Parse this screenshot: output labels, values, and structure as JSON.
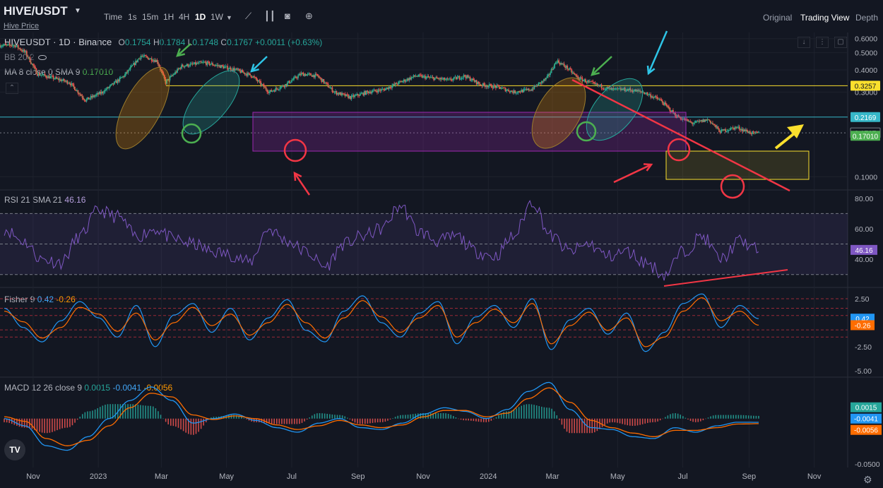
{
  "header": {
    "symbol": "HIVE/USDT",
    "sublink": "Hive Price",
    "timeframes": [
      "Time",
      "1s",
      "15m",
      "1H",
      "4H",
      "1D",
      "1W"
    ],
    "active_timeframe": "1D",
    "tools": [
      "chart-type-icon",
      "candles-icon",
      "camera-icon",
      "add-icon"
    ],
    "view_tabs": [
      "Original",
      "Trading View",
      "Depth"
    ],
    "active_view": "Trading View"
  },
  "legend": {
    "pair": "HIVEUSDT · 1D · Binance",
    "o_label": "O",
    "o": "0.1754",
    "h_label": "H",
    "h": "0.1784",
    "l_label": "L",
    "l": "0.1748",
    "c_label": "C",
    "c": "0.1767",
    "change": "+0.0011 (+0.63%)",
    "bb": "BB 20 2",
    "ma": "MA 8 close 0 SMA 9",
    "ma_value": "0.17010"
  },
  "colors": {
    "background": "#131722",
    "up": "#26a69a",
    "down": "#ef5350",
    "accent": "#2962ff"
  },
  "chart_data": [
    {
      "type": "candlestick",
      "title": "HIVEUSDT · 1D · Binance",
      "scale": "log",
      "x_ticks": [
        "Nov",
        "2023",
        "Mar",
        "May",
        "Jul",
        "Sep",
        "Nov",
        "2024",
        "Mar",
        "May",
        "Jul",
        "Sep",
        "Nov"
      ],
      "y_ticks": [
        "0.6000",
        "0.5000",
        "0.4000",
        "0.3000",
        "0.1000"
      ],
      "ylim": [
        0.085,
        0.65
      ],
      "price_labels": [
        {
          "value": "0.3257",
          "color": "#fbe02d"
        },
        {
          "value": "0.2169",
          "color": "#36b7c8"
        },
        {
          "value": "0.1767",
          "color": "#131722"
        },
        {
          "value": "0.17010",
          "color": "#4caf50"
        }
      ],
      "horizontal_lines": [
        0.3257,
        0.2169,
        0.1767
      ],
      "close_series": [
        {
          "x": "2022-10-15",
          "y": 0.55
        },
        {
          "x": "2022-10-25",
          "y": 0.5
        },
        {
          "x": "2022-11-05",
          "y": 0.38
        },
        {
          "x": "2022-11-20",
          "y": 0.36
        },
        {
          "x": "2022-12-05",
          "y": 0.34
        },
        {
          "x": "2022-12-20",
          "y": 0.27
        },
        {
          "x": "2023-01-05",
          "y": 0.3
        },
        {
          "x": "2023-01-25",
          "y": 0.37
        },
        {
          "x": "2023-02-10",
          "y": 0.48
        },
        {
          "x": "2023-02-25",
          "y": 0.45
        },
        {
          "x": "2023-03-05",
          "y": 0.34
        },
        {
          "x": "2023-03-20",
          "y": 0.42
        },
        {
          "x": "2023-04-10",
          "y": 0.44
        },
        {
          "x": "2023-04-25",
          "y": 0.42
        },
        {
          "x": "2023-05-10",
          "y": 0.4
        },
        {
          "x": "2023-05-25",
          "y": 0.37
        },
        {
          "x": "2023-06-10",
          "y": 0.3
        },
        {
          "x": "2023-06-25",
          "y": 0.33
        },
        {
          "x": "2023-07-10",
          "y": 0.38
        },
        {
          "x": "2023-07-25",
          "y": 0.37
        },
        {
          "x": "2023-08-10",
          "y": 0.3
        },
        {
          "x": "2023-08-25",
          "y": 0.28
        },
        {
          "x": "2023-09-10",
          "y": 0.3
        },
        {
          "x": "2023-09-25",
          "y": 0.31
        },
        {
          "x": "2023-10-10",
          "y": 0.34
        },
        {
          "x": "2023-10-25",
          "y": 0.37
        },
        {
          "x": "2023-11-10",
          "y": 0.36
        },
        {
          "x": "2023-11-25",
          "y": 0.35
        },
        {
          "x": "2023-12-10",
          "y": 0.37
        },
        {
          "x": "2023-12-25",
          "y": 0.33
        },
        {
          "x": "2024-01-10",
          "y": 0.32
        },
        {
          "x": "2024-01-25",
          "y": 0.3
        },
        {
          "x": "2024-02-10",
          "y": 0.31
        },
        {
          "x": "2024-02-25",
          "y": 0.36
        },
        {
          "x": "2024-03-05",
          "y": 0.45
        },
        {
          "x": "2024-03-15",
          "y": 0.41
        },
        {
          "x": "2024-03-25",
          "y": 0.36
        },
        {
          "x": "2024-04-10",
          "y": 0.33
        },
        {
          "x": "2024-04-25",
          "y": 0.31
        },
        {
          "x": "2024-05-10",
          "y": 0.31
        },
        {
          "x": "2024-05-25",
          "y": 0.3
        },
        {
          "x": "2024-06-10",
          "y": 0.27
        },
        {
          "x": "2024-06-25",
          "y": 0.22
        },
        {
          "x": "2024-07-10",
          "y": 0.2
        },
        {
          "x": "2024-07-25",
          "y": 0.21
        },
        {
          "x": "2024-08-05",
          "y": 0.18
        },
        {
          "x": "2024-08-20",
          "y": 0.19
        },
        {
          "x": "2024-09-05",
          "y": 0.175
        },
        {
          "x": "2024-09-10",
          "y": 0.1767
        }
      ]
    },
    {
      "type": "line",
      "title": "RSI 21 SMA 21",
      "value": "46.16",
      "y_ticks": [
        "80.00",
        "60.00",
        "40.00"
      ],
      "ylim": [
        22,
        85
      ],
      "bands": [
        30,
        50,
        70
      ],
      "series": [
        {
          "name": "RSI",
          "values": [
            60,
            52,
            40,
            38,
            55,
            72,
            68,
            55,
            60,
            53,
            50,
            45,
            43,
            38,
            60,
            52,
            45,
            35,
            50,
            55,
            60,
            75,
            58,
            52,
            55,
            45,
            42,
            55,
            78,
            55,
            45,
            50,
            42,
            45,
            38,
            30,
            45,
            55,
            40,
            52,
            46
          ]
        }
      ]
    },
    {
      "type": "line",
      "title": "Fisher 9",
      "value_fisher": "0.42",
      "value_trigger": "-0.26",
      "y_ticks": [
        "2.50",
        "-2.50",
        "-5.00"
      ],
      "ylim": [
        -5.6,
        3.6
      ],
      "series": [
        {
          "name": "Fisher",
          "values": [
            1.5,
            -0.5,
            -2.0,
            0.2,
            2.2,
            0.5,
            -1.5,
            1.8,
            -2.5,
            0.8,
            2.0,
            -1.0,
            1.5,
            -1.8,
            0.5,
            2.4,
            -0.8,
            -2.0,
            1.2,
            2.8,
            0.0,
            -1.5,
            1.0,
            2.2,
            -2.2,
            0.6,
            1.8,
            -0.5,
            2.5,
            -2.8,
            0.3,
            1.5,
            -1.2,
            1.0,
            -3.0,
            -1.0,
            2.0,
            3.0,
            -0.5,
            1.8,
            0.42
          ]
        },
        {
          "name": "Trigger",
          "values": [
            1.2,
            0.1,
            -1.6,
            -0.5,
            1.6,
            0.9,
            -0.9,
            1.0,
            -1.8,
            0.0,
            1.6,
            -0.3,
            0.9,
            -1.3,
            0.0,
            1.9,
            0.0,
            -1.6,
            0.5,
            2.3,
            0.6,
            -1.0,
            0.5,
            1.8,
            -1.5,
            0.0,
            1.4,
            0.0,
            2.0,
            -2.2,
            -0.3,
            1.1,
            -0.8,
            0.5,
            -2.5,
            -1.5,
            1.2,
            2.6,
            0.2,
            1.2,
            -0.26
          ]
        }
      ]
    },
    {
      "type": "line",
      "title": "MACD 12 26 close 9",
      "value_hist": "0.0015",
      "value_macd": "-0.0041",
      "value_signal": "-0.0056",
      "y_ticks": [
        "0.0000",
        "-0.0500"
      ],
      "ylim": [
        -0.054,
        0.045
      ],
      "series": [
        {
          "name": "MACD",
          "values": [
            0.0,
            -0.008,
            -0.03,
            -0.035,
            -0.02,
            0.0,
            0.02,
            0.035,
            0.02,
            -0.005,
            0.0,
            0.005,
            -0.002,
            -0.01,
            -0.015,
            -0.005,
            0.0,
            -0.01,
            -0.012,
            -0.005,
            0.005,
            0.012,
            0.008,
            0.0,
            0.01,
            0.03,
            0.04,
            0.01,
            -0.01,
            -0.012,
            -0.02,
            -0.022,
            -0.01,
            -0.015,
            -0.008,
            -0.004,
            -0.0041
          ]
        },
        {
          "name": "Signal",
          "values": [
            0.002,
            -0.003,
            -0.022,
            -0.03,
            -0.024,
            -0.008,
            0.012,
            0.028,
            0.024,
            0.004,
            -0.001,
            0.003,
            0.0,
            -0.007,
            -0.012,
            -0.008,
            -0.002,
            -0.007,
            -0.01,
            -0.007,
            0.002,
            0.009,
            0.009,
            0.002,
            0.006,
            0.022,
            0.034,
            0.018,
            -0.002,
            -0.01,
            -0.016,
            -0.02,
            -0.013,
            -0.013,
            -0.01,
            -0.006,
            -0.0056
          ]
        }
      ]
    }
  ]
}
